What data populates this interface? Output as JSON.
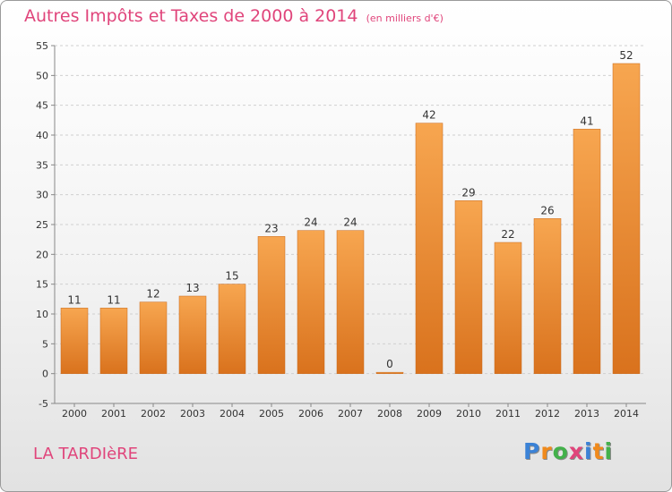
{
  "header": {
    "title": "Autres Impôts et Taxes de 2000 à 2014",
    "unit": "(en milliers d'€)"
  },
  "commune": "LA TARDIèRE",
  "logo": {
    "text": "Proxiti",
    "letters": [
      {
        "ch": "P",
        "color": "#3b82d6"
      },
      {
        "ch": "r",
        "color": "#f08a1c"
      },
      {
        "ch": "o",
        "color": "#43b14b"
      },
      {
        "ch": "x",
        "color": "#e0457b"
      },
      {
        "ch": "i",
        "color": "#3b82d6"
      },
      {
        "ch": "t",
        "color": "#f08a1c"
      },
      {
        "ch": "i",
        "color": "#43b14b"
      }
    ]
  },
  "chart_data": {
    "type": "bar",
    "title": "Autres Impôts et Taxes de 2000 à 2014",
    "subtitle": "(en milliers d'€)",
    "categories": [
      "2000",
      "2001",
      "2002",
      "2003",
      "2004",
      "2005",
      "2006",
      "2007",
      "2008",
      "2009",
      "2010",
      "2011",
      "2012",
      "2013",
      "2014"
    ],
    "values": [
      11,
      11,
      12,
      13,
      15,
      23,
      24,
      24,
      0,
      42,
      29,
      22,
      26,
      41,
      52
    ],
    "ylim": [
      -5,
      55
    ],
    "yticks": [
      -5,
      0,
      5,
      10,
      15,
      20,
      25,
      30,
      35,
      40,
      45,
      50,
      55
    ],
    "grid": true,
    "bar_color": "#f0963c",
    "xlabel": "",
    "ylabel": ""
  }
}
